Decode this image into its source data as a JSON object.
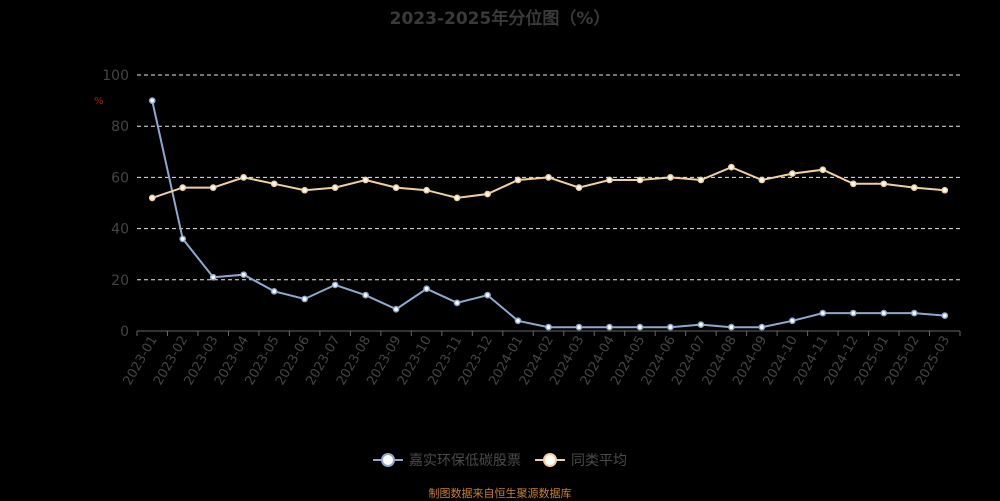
{
  "chart_data": {
    "type": "line",
    "title": "2023-2025年分位图（%）",
    "ylabel": "%",
    "ylim": [
      0,
      100
    ],
    "yticks": [
      0,
      20,
      40,
      60,
      80,
      100
    ],
    "grid": true,
    "legend_position": "bottom-center",
    "categories": [
      "2023-01",
      "2023-02",
      "2023-03",
      "2023-04",
      "2023-05",
      "2023-06",
      "2023-07",
      "2023-08",
      "2023-09",
      "2023-10",
      "2023-11",
      "2023-12",
      "2024-01",
      "2024-02",
      "2024-03",
      "2024-04",
      "2024-05",
      "2024-06",
      "2024-07",
      "2024-08",
      "2024-09",
      "2024-10",
      "2024-11",
      "2024-12",
      "2025-01",
      "2025-02",
      "2025-03"
    ],
    "series": [
      {
        "name": "嘉实环保低碳股票",
        "color": "#8fa8d0",
        "values": [
          90,
          36,
          21,
          22,
          15.5,
          12.5,
          18,
          14,
          8.5,
          16.5,
          11,
          14,
          4,
          1.5,
          1.5,
          1.5,
          1.5,
          1.5,
          2.5,
          1.5,
          1.5,
          4,
          7,
          7,
          7,
          7,
          6
        ]
      },
      {
        "name": "同类平均",
        "color": "#f2cf9a",
        "values": [
          52,
          56,
          56,
          60,
          57.5,
          55,
          56,
          59,
          56,
          55,
          52,
          53.5,
          59,
          60,
          56,
          59,
          59,
          60,
          59,
          64,
          59,
          61.5,
          63,
          57.5,
          57.5,
          56,
          55
        ]
      }
    ]
  },
  "source": "制图数据来自恒生聚源数据库"
}
